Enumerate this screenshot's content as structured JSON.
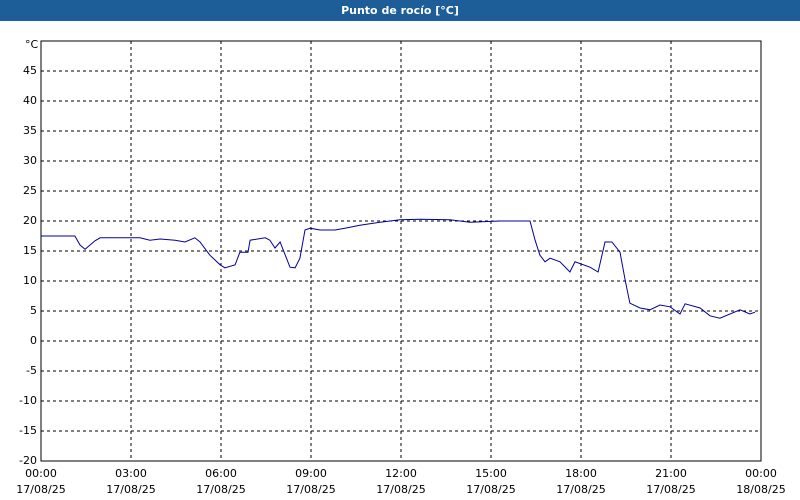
{
  "chart_data": {
    "type": "line",
    "title": "Punto de rocío [°C]",
    "y_label": "°C",
    "xlim": [
      0,
      24
    ],
    "ylim": [
      -20,
      50
    ],
    "xticks": [
      {
        "value": 0,
        "label": "00:00",
        "date": "17/08/25"
      },
      {
        "value": 3,
        "label": "03:00",
        "date": "17/08/25"
      },
      {
        "value": 6,
        "label": "06:00",
        "date": "17/08/25"
      },
      {
        "value": 9,
        "label": "09:00",
        "date": "17/08/25"
      },
      {
        "value": 12,
        "label": "12:00",
        "date": "17/08/25"
      },
      {
        "value": 15,
        "label": "15:00",
        "date": "17/08/25"
      },
      {
        "value": 18,
        "label": "18:00",
        "date": "17/08/25"
      },
      {
        "value": 21,
        "label": "21:00",
        "date": "17/08/25"
      },
      {
        "value": 24,
        "label": "00:00",
        "date": "18/08/25"
      }
    ],
    "yticks": [
      -20,
      -15,
      -10,
      -5,
      0,
      5,
      10,
      15,
      20,
      25,
      30,
      35,
      40,
      45
    ],
    "grid": true,
    "series": [
      {
        "name": "Punto de rocío",
        "color": "#0000a0",
        "x": [
          0,
          1.13,
          1.3,
          1.47,
          1.8,
          1.97,
          3.3,
          3.63,
          3.97,
          4.47,
          4.8,
          5.13,
          5.3,
          5.63,
          5.97,
          6.13,
          6.47,
          6.63,
          6.9,
          6.97,
          7.47,
          7.63,
          7.8,
          7.97,
          8.3,
          8.47,
          8.63,
          8.8,
          8.97,
          9.3,
          9.8,
          10.13,
          10.63,
          11.3,
          11.97,
          12.63,
          13.63,
          14.3,
          15.3,
          16.3,
          16.47,
          16.63,
          16.8,
          16.97,
          17.3,
          17.63,
          17.8,
          18.3,
          18.57,
          18.8,
          19.03,
          19.3,
          19.47,
          19.63,
          19.97,
          20.3,
          20.63,
          20.97,
          21.3,
          21.47,
          21.97,
          22.3,
          22.63,
          23.3,
          23.63,
          23.8
        ],
        "values": [
          17.5,
          17.5,
          16,
          15.3,
          16.7,
          17.2,
          17.2,
          16.8,
          17,
          16.8,
          16.5,
          17.2,
          16.5,
          14.3,
          12.7,
          12.2,
          12.7,
          14.8,
          14.8,
          16.8,
          17.2,
          16.8,
          15.5,
          16.5,
          12.3,
          12.2,
          13.8,
          18.5,
          18.8,
          18.5,
          18.5,
          18.8,
          19.3,
          19.8,
          20.2,
          20.3,
          20.2,
          19.8,
          20,
          20,
          16.8,
          14.3,
          13.2,
          13.8,
          13.2,
          11.5,
          13.2,
          12.3,
          11.5,
          16.5,
          16.5,
          14.8,
          10.2,
          6.3,
          5.5,
          5.2,
          6,
          5.7,
          4.5,
          6.2,
          5.5,
          4.2,
          3.8,
          5.2,
          4.5,
          4.8
        ]
      }
    ]
  }
}
